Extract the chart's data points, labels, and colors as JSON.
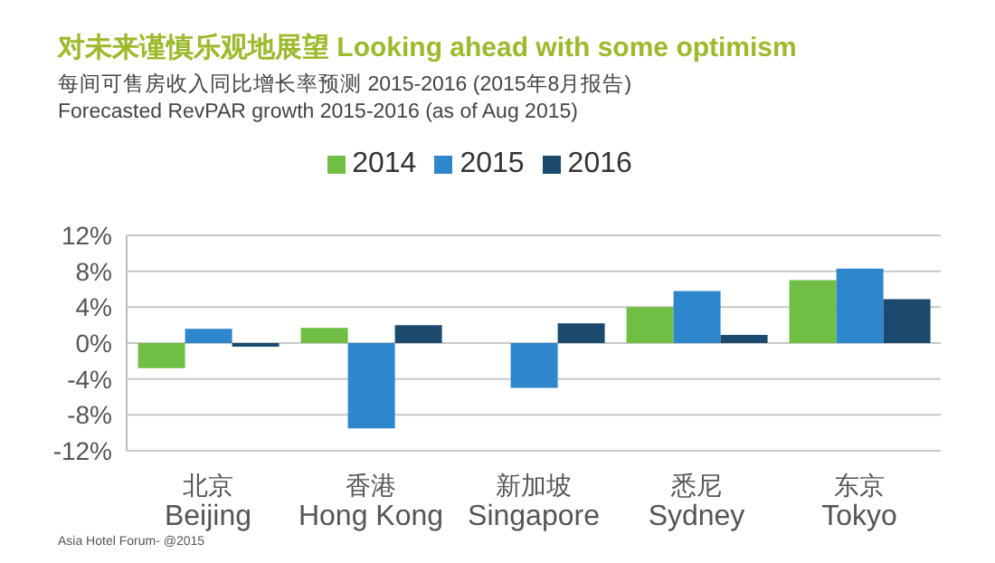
{
  "chart_data": {
    "type": "bar",
    "title": "对未来谨慎乐观地展望 Looking ahead with some optimism",
    "subtitle": "每间可售房收入同比增长率预测 2015-2016 (2015年8月报告)\nForecasted RevPAR growth 2015-2016 (as of Aug 2015)",
    "categories": [
      "北京\nBeijing",
      "香港\nHong Kong",
      "新加坡\nSingapore",
      "悉尼\nSydney",
      "东京\nTokyo"
    ],
    "series": [
      {
        "name": "2014",
        "color": "#70bf44",
        "values": [
          -2.8,
          1.7,
          null,
          4.0,
          7.0
        ]
      },
      {
        "name": "2015",
        "color": "#2e86cc",
        "values": [
          1.6,
          -9.5,
          -5.0,
          5.8,
          8.3
        ]
      },
      {
        "name": "2016",
        "color": "#1b4a6e",
        "values": [
          -0.4,
          2.0,
          2.2,
          0.9,
          4.9
        ]
      }
    ],
    "ylim": [
      -12,
      12
    ],
    "yticks": [
      {
        "value": -12,
        "label": "-12%"
      },
      {
        "value": -8,
        "label": "-8%"
      },
      {
        "value": -4,
        "label": "-4%"
      },
      {
        "value": 0,
        "label": "0%"
      },
      {
        "value": 4,
        "label": "4%"
      },
      {
        "value": 8,
        "label": "8%"
      },
      {
        "value": 12,
        "label": "12%"
      }
    ],
    "grid": "y",
    "legend": "top",
    "annotations": [
      "Asia Hotel Forum- @2015"
    ]
  }
}
